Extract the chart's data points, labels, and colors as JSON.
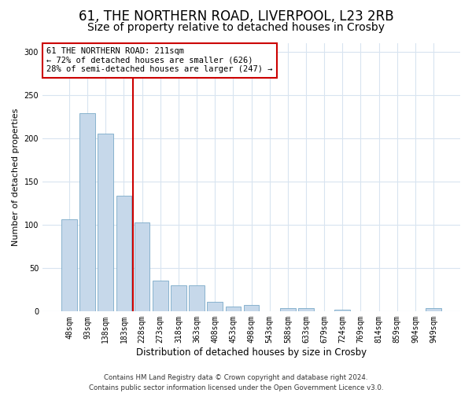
{
  "title": "61, THE NORTHERN ROAD, LIVERPOOL, L23 2RB",
  "subtitle": "Size of property relative to detached houses in Crosby",
  "xlabel": "Distribution of detached houses by size in Crosby",
  "ylabel": "Number of detached properties",
  "categories": [
    "48sqm",
    "93sqm",
    "138sqm",
    "183sqm",
    "228sqm",
    "273sqm",
    "318sqm",
    "363sqm",
    "408sqm",
    "453sqm",
    "498sqm",
    "543sqm",
    "588sqm",
    "633sqm",
    "679sqm",
    "724sqm",
    "769sqm",
    "814sqm",
    "859sqm",
    "904sqm",
    "949sqm"
  ],
  "values": [
    107,
    229,
    206,
    134,
    103,
    36,
    30,
    30,
    11,
    6,
    8,
    0,
    4,
    4,
    0,
    2,
    0,
    0,
    0,
    0,
    4
  ],
  "bar_color": "#c6d8ea",
  "bar_edge_color": "#7aaac8",
  "vline_x": 3.5,
  "vline_color": "#cc0000",
  "annotation_text": "61 THE NORTHERN ROAD: 211sqm\n← 72% of detached houses are smaller (626)\n28% of semi-detached houses are larger (247) →",
  "annotation_box_color": "white",
  "annotation_box_edge": "#cc0000",
  "ylim": [
    0,
    310
  ],
  "yticks": [
    0,
    50,
    100,
    150,
    200,
    250,
    300
  ],
  "footer": "Contains HM Land Registry data © Crown copyright and database right 2024.\nContains public sector information licensed under the Open Government Licence v3.0.",
  "bg_color": "#ffffff",
  "plot_bg_color": "#ffffff",
  "grid_color": "#d8e4f0",
  "title_fontsize": 12,
  "subtitle_fontsize": 10,
  "bar_width": 0.85
}
